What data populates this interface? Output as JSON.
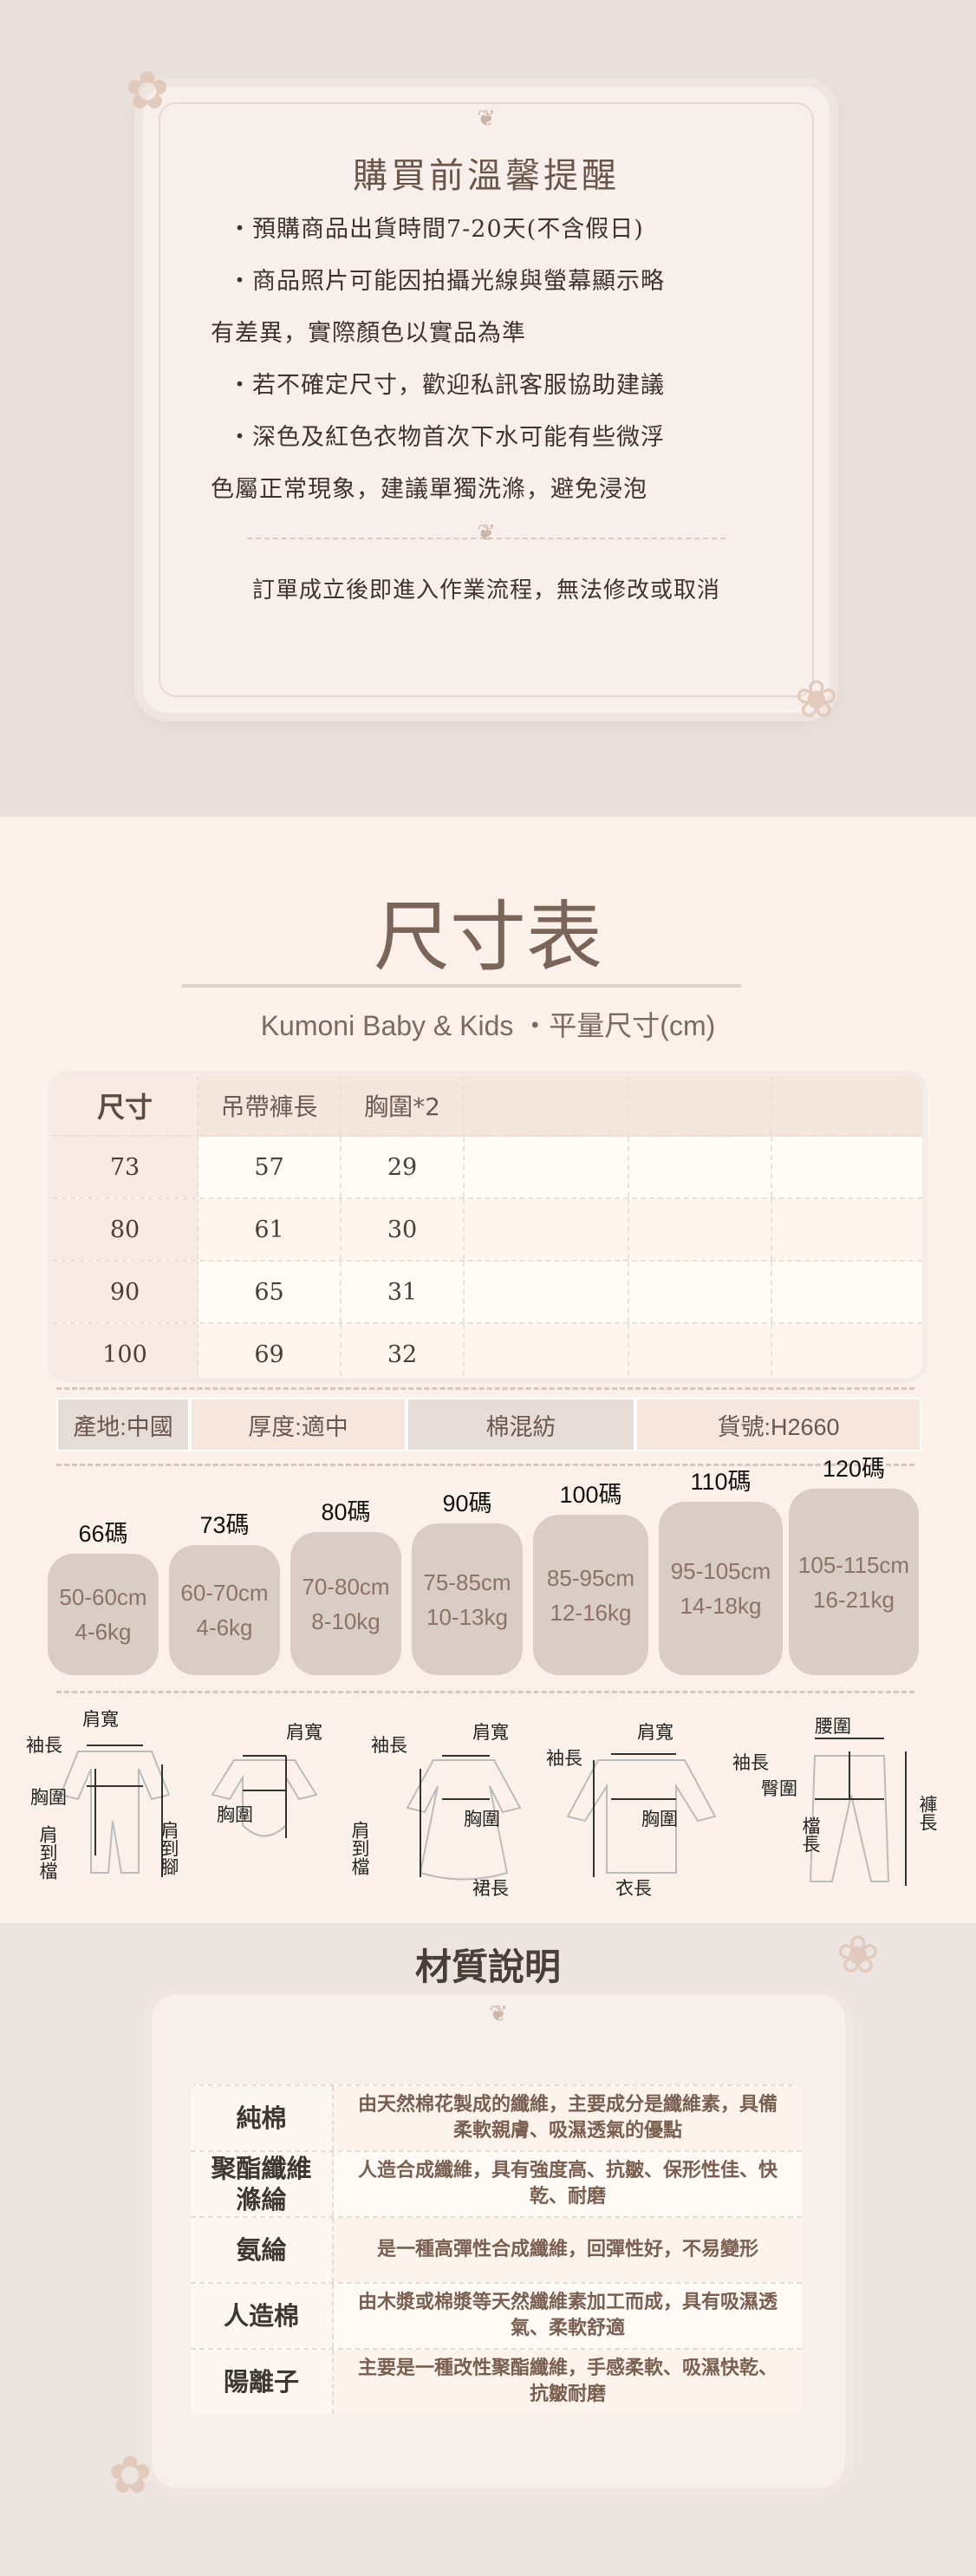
{
  "notice": {
    "title": "購買前溫馨提醒",
    "lines": [
      "・預購商品出貨時間7-20天(不含假日)",
      "・商品照片可能因拍攝光線與螢幕顯示略",
      "有差異，實際顏色以實品為準",
      "・若不確定尺寸，歡迎私訊客服協助建議",
      "・深色及紅色衣物首次下水可能有些微浮",
      "色屬正常現象，建議單獨洗滌，避免浸泡"
    ],
    "footer": "訂單成立後即進入作業流程，無法修改或取消"
  },
  "size_chart": {
    "title": "尺寸表",
    "subtitle": "Kumoni Baby & Kids ・平量尺寸(cm)",
    "headers": [
      "尺寸",
      "吊帶褲長",
      "胸圍*2",
      "",
      "",
      ""
    ],
    "rows": [
      [
        "73",
        "57",
        "29"
      ],
      [
        "80",
        "61",
        "30"
      ],
      [
        "90",
        "65",
        "31"
      ],
      [
        "100",
        "69",
        "32"
      ]
    ]
  },
  "info": [
    "產地:中國",
    "厚度:適中",
    "棉混紡",
    "貨號:H2660"
  ],
  "size_guide": [
    {
      "label": "66碼",
      "height": "50-60cm",
      "weight": "4-6kg"
    },
    {
      "label": "73碼",
      "height": "60-70cm",
      "weight": "4-6kg"
    },
    {
      "label": "80碼",
      "height": "70-80cm",
      "weight": "8-10kg"
    },
    {
      "label": "90碼",
      "height": "75-85cm",
      "weight": "10-13kg"
    },
    {
      "label": "100碼",
      "height": "85-95cm",
      "weight": "12-16kg"
    },
    {
      "label": "110碼",
      "height": "95-105cm",
      "weight": "14-18kg"
    },
    {
      "label": "120碼",
      "height": "105-115cm",
      "weight": "16-21kg"
    }
  ],
  "diagram_labels": {
    "shoulder": "肩寬",
    "sleeve": "袖長",
    "chest": "胸圍",
    "shoulder_crotch": "肩到檔",
    "shoulder_foot": "肩到腳",
    "shoulder_crotch2": "肩到檔",
    "skirt": "裙長",
    "top": "衣長",
    "waist": "腰圍",
    "hip": "臀圍",
    "rise": "檔長",
    "pants": "褲長"
  },
  "materials": {
    "title": "材質說明",
    "items": [
      {
        "name": "純棉",
        "desc": "由天然棉花製成的纖維，主要成分是纖維素，具備柔軟親膚、吸濕透氣的優點"
      },
      {
        "name": "聚酯纖維滌綸",
        "desc": "人造合成纖維，具有強度高、抗皺、保形性佳、快乾、耐磨"
      },
      {
        "name": "氨綸",
        "desc": "是一種高彈性合成纖維，回彈性好，不易變形"
      },
      {
        "name": "人造棉",
        "desc": "由木漿或棉漿等天然纖維素加工而成，具有吸濕透氣、柔軟舒適"
      },
      {
        "name": "陽離子",
        "desc": "主要是一種改性聚酯纖維，手感柔軟、吸濕快乾、抗皺耐磨"
      }
    ]
  },
  "colors": {
    "accent": "#7a6558",
    "bubble": "#dacdc5",
    "header": "#f5e6dc"
  }
}
